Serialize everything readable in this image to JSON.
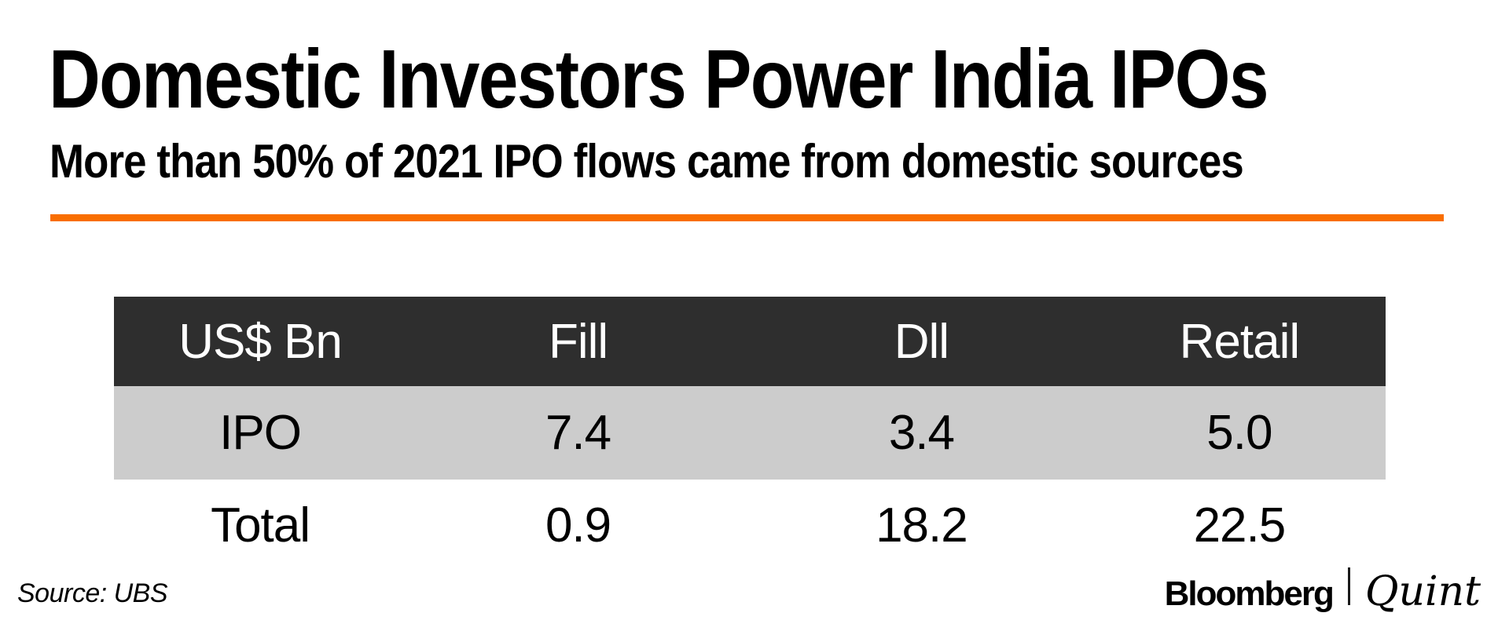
{
  "chart": {
    "title": "Domestic Investors Power India IPOs",
    "subtitle": "More than 50% of 2021 IPO flows came from domestic sources",
    "source": "Source: UBS",
    "brand": {
      "bloomberg": "Bloomberg",
      "quint": "Quint"
    },
    "colors": {
      "accent_orange": "#F96E00",
      "header_bg": "#2E2E2E",
      "row_alt_bg": "#CCCCCC",
      "header_text": "#FFFFFF",
      "text": "#000000"
    }
  },
  "table": {
    "headers": [
      "US$ Bn",
      "Fill",
      "Dll",
      "Retail"
    ],
    "rows": [
      {
        "label": "IPO",
        "values": [
          "7.4",
          "3.4",
          "5.0"
        ]
      },
      {
        "label": "Total",
        "values": [
          "0.9",
          "18.2",
          "22.5"
        ]
      }
    ]
  },
  "chart_data": {
    "type": "table",
    "title": "Domestic Investors Power India IPOs",
    "subtitle": "More than 50% of 2021 IPO flows came from domestic sources",
    "columns": [
      "US$ Bn",
      "Fill",
      "Dll",
      "Retail"
    ],
    "rows": [
      [
        "IPO",
        7.4,
        3.4,
        5.0
      ],
      [
        "Total",
        0.9,
        18.2,
        22.5
      ]
    ],
    "source": "UBS"
  }
}
